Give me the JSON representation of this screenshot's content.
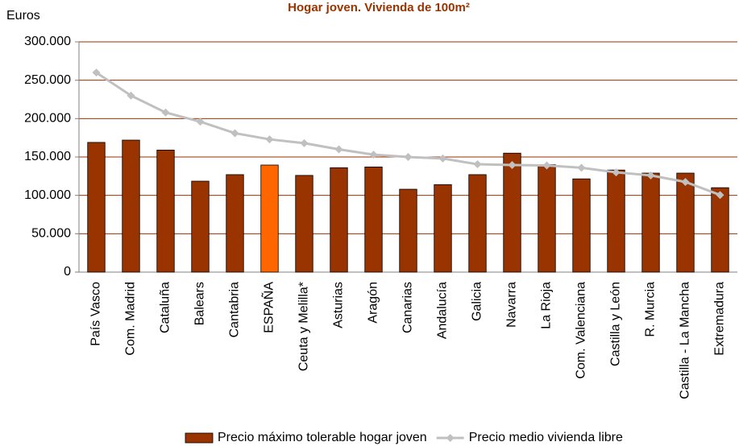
{
  "chart_data": {
    "type": "bar_line",
    "title": "Hogar joven. Vivienda de 100m²",
    "y_axis_label": "Euros",
    "categories": [
      "País Vasco",
      "Com. Madrid",
      "Cataluña",
      "Balears",
      "Cantabria",
      "ESPAÑA",
      "Ceuta y Melilla*",
      "Asturias",
      "Aragón",
      "Canarias",
      "Andalucía",
      "Galicia",
      "Navarra",
      "La Rioja",
      "Com. Valenciana",
      "Castilla y León",
      "R. Murcia",
      "Castilla - La Mancha",
      "Extremadura"
    ],
    "series": [
      {
        "name": "Precio máximo tolerable hogar joven",
        "type": "bar",
        "color": "#993300",
        "point_colors": [
          "#993300",
          "#993300",
          "#993300",
          "#993300",
          "#993300",
          "#ff6600",
          "#993300",
          "#993300",
          "#993300",
          "#993300",
          "#993300",
          "#993300",
          "#993300",
          "#993300",
          "#993300",
          "#993300",
          "#993300",
          "#993300",
          "#993300"
        ],
        "values": [
          169000,
          172000,
          159000,
          118500,
          127000,
          139500,
          126000,
          136000,
          137000,
          108000,
          114000,
          127000,
          155000,
          140000,
          121500,
          133000,
          129000,
          129000,
          110000
        ]
      },
      {
        "name": "Precio medio vivienda libre",
        "type": "line",
        "color": "#c0c0c0",
        "values": [
          260000,
          230000,
          208000,
          196000,
          181000,
          173000,
          168000,
          160000,
          153000,
          150000,
          148000,
          140500,
          139500,
          139000,
          136000,
          130000,
          126000,
          117500,
          100500
        ]
      }
    ],
    "ylim": [
      0,
      300000
    ],
    "yticks": [
      0,
      {
        "value": 50000,
        "label": "50.000"
      },
      {
        "value": 100000,
        "label": "100.000"
      },
      {
        "value": 150000,
        "label": "150.000"
      },
      {
        "value": 200000,
        "label": "200.000"
      },
      {
        "value": 250000,
        "label": "250.000"
      },
      {
        "value": 300000,
        "label": "300.000"
      }
    ],
    "grid": true,
    "legend": "bottom"
  }
}
